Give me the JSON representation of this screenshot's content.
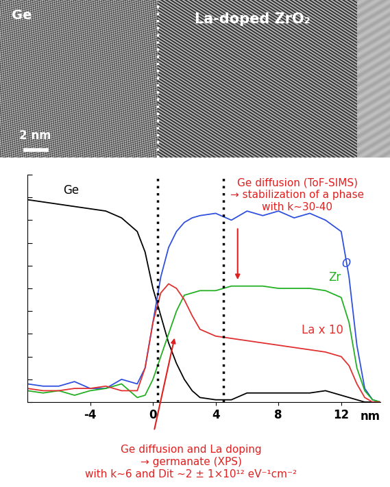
{
  "image": {
    "labels": [
      "Ge",
      "La-doped ZrO₂"
    ],
    "scale_bar": "2 nm"
  },
  "chart_data": {
    "type": "line",
    "x": [
      -8,
      -7,
      -6,
      -5,
      -4,
      -3,
      -2,
      -1,
      -0.5,
      0,
      0.5,
      1,
      1.5,
      2,
      2.5,
      3,
      4,
      5,
      6,
      7,
      8,
      9,
      10,
      11,
      12,
      12.5,
      13,
      13.5,
      14,
      14.5
    ],
    "series": [
      {
        "name": "Ge",
        "color": "#000000",
        "values": [
          8.9,
          8.8,
          8.7,
          8.6,
          8.5,
          8.4,
          8.1,
          7.5,
          6.6,
          5.0,
          3.8,
          2.6,
          1.7,
          1.0,
          0.5,
          0.2,
          0.1,
          0.1,
          0.4,
          0.4,
          0.4,
          0.4,
          0.4,
          0.5,
          0.3,
          0.2,
          0.1,
          0.0,
          0.0,
          0.0
        ]
      },
      {
        "name": "O",
        "color": "#2f4fe0",
        "values": [
          0.8,
          0.7,
          0.7,
          0.9,
          0.6,
          0.6,
          1.0,
          0.8,
          1.5,
          3.5,
          5.5,
          6.8,
          7.5,
          7.9,
          8.1,
          8.2,
          8.3,
          8.0,
          8.4,
          8.2,
          8.4,
          8.1,
          8.3,
          8.0,
          7.5,
          5.5,
          2.5,
          0.6,
          0.1,
          0.0
        ]
      },
      {
        "name": "Zr",
        "color": "#22b022",
        "values": [
          0.5,
          0.4,
          0.5,
          0.3,
          0.5,
          0.6,
          0.8,
          0.2,
          0.3,
          1.0,
          2.0,
          3.0,
          4.0,
          4.7,
          4.8,
          4.9,
          4.9,
          5.1,
          5.1,
          5.1,
          5.0,
          5.0,
          5.0,
          4.9,
          4.6,
          3.5,
          1.5,
          0.5,
          0.1,
          0.0
        ]
      },
      {
        "name": "La x 10",
        "color": "#e03030",
        "values": [
          0.6,
          0.5,
          0.5,
          0.6,
          0.6,
          0.7,
          0.5,
          0.5,
          1.5,
          3.5,
          4.8,
          5.2,
          5.0,
          4.5,
          3.8,
          3.2,
          2.9,
          2.8,
          2.7,
          2.6,
          2.5,
          2.4,
          2.3,
          2.2,
          2.0,
          1.6,
          0.8,
          0.2,
          0.0,
          0.0
        ]
      }
    ],
    "xlim": [
      -8,
      14.5
    ],
    "xticks": [
      -4,
      0,
      4,
      8,
      12
    ],
    "x_unit": "nm",
    "ylim": [
      0,
      10
    ],
    "yticks": [
      0,
      1,
      2,
      3,
      4,
      5,
      6,
      7,
      8,
      9,
      10
    ],
    "tick_labels": "x",
    "interfaces": [
      0.3,
      4.5
    ],
    "annotations": [
      {
        "text": "Ge diffusion (ToF-SIMS)\n→ stabilization of a phase\nwith k~30-40",
        "color": "#e02020",
        "x": 5.4,
        "y": 5.3
      },
      {
        "text": "Ge diffusion and La doping\n→ germanate (XPS)\nwith k~6 and Dit ~2 ± 1×10¹² eV⁻¹cm⁻²",
        "color": "#e02020",
        "x": 1.4,
        "y": 2.9
      }
    ]
  }
}
